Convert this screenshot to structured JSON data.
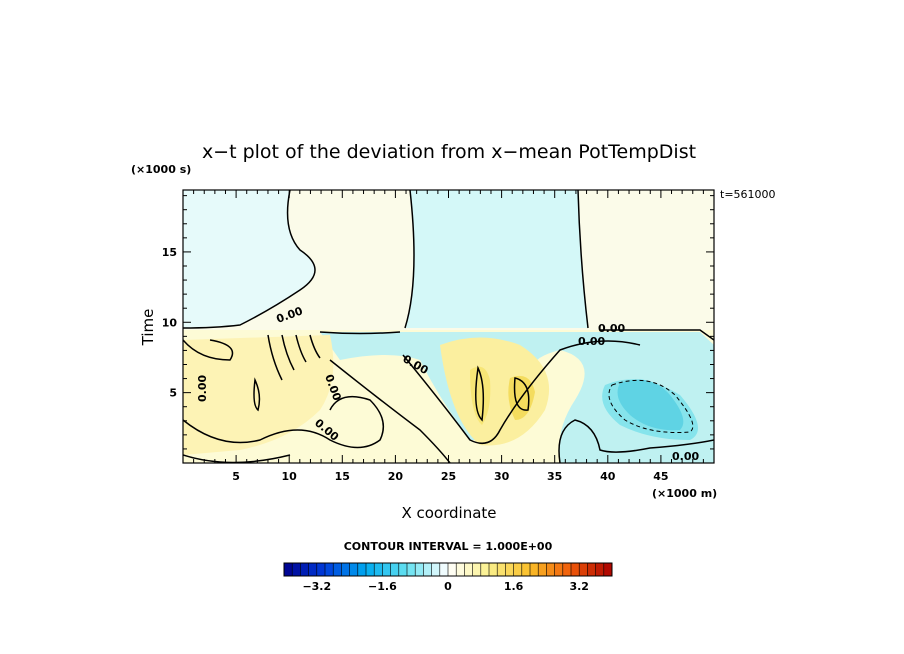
{
  "chart_data": {
    "type": "heatmap",
    "title": "x−t plot of the deviation from x−mean PotTempDist",
    "xlabel": "X coordinate",
    "ylabel": "Time",
    "x_unit_label": "(×1000 m)",
    "y_unit_label": "(×1000 s)",
    "time_stamp": "t=561000",
    "xlim": [
      0,
      50
    ],
    "ylim": [
      0,
      19.4
    ],
    "x_ticks": [
      5,
      10,
      15,
      20,
      25,
      30,
      35,
      40,
      45
    ],
    "x_tick_labels": [
      "5",
      "10",
      "15",
      "20",
      "25",
      "30",
      "35",
      "40",
      "45"
    ],
    "y_ticks": [
      5,
      10,
      15
    ],
    "y_tick_labels": [
      "5",
      "10",
      "15"
    ],
    "contour_interval_text": "CONTOUR INTERVAL = 1.000E+00",
    "contour_label": "0.00",
    "colorbar": {
      "min": -4,
      "max": 4,
      "step": 0.2,
      "ticks": [
        -3.2,
        -1.6,
        0,
        1.6,
        3.2
      ],
      "tick_labels": [
        "−3.2",
        "−1.6",
        "0",
        "1.6",
        "3.2"
      ]
    },
    "grid": false
  }
}
